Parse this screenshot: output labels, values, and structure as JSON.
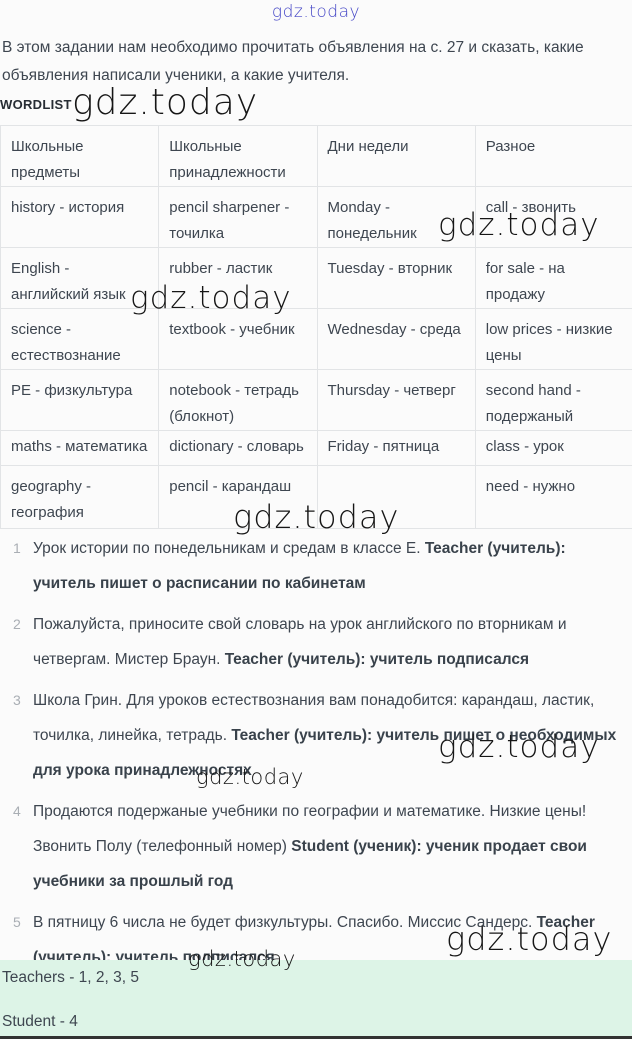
{
  "brand": {
    "watermark": "gdz.today"
  },
  "intro": {
    "text": "В этом задании нам необходимо прочитать объявления на с. 27 и сказать, какие объявления написали ученики, а какие учителя."
  },
  "wordlist": {
    "label": "WORDLIST"
  },
  "table": {
    "headers": [
      "Школьные предметы",
      "Школьные принадлежности",
      "Дни недели",
      "Разное"
    ],
    "rows": [
      [
        "history - история",
        "pencil sharpener - точилка",
        "Monday - понедельник",
        "call - звонить"
      ],
      [
        "English - английский язык",
        "rubber - ластик",
        "Tuesday - вторник",
        "for sale - на продажу"
      ],
      [
        "science - естествознание",
        "textbook - учебник",
        "Wednesday - среда",
        "low prices - низкие цены"
      ],
      [
        "PE - физкультура",
        "notebook - тетрадь (блокнот)",
        "Thursday - четверг",
        "second hand - подержаный"
      ],
      [
        "maths - математика",
        "dictionary - словарь",
        "Friday - пятница",
        "class - урок"
      ],
      [
        "geography - география",
        "pencil - карандаш",
        "",
        "need - нужно"
      ]
    ]
  },
  "answers": {
    "items": [
      {
        "num": "1",
        "text": "Урок истории по понедельникам и средам в классе E. ",
        "bold": "Teacher (учитель): учитель пишет о расписании по кабинетам"
      },
      {
        "num": "2",
        "text": "Пожалуйста, приносите свой словарь на урок английского по вторникам и четвергам. Мистер Браун. ",
        "bold": "Teacher (учитель): учитель подписался"
      },
      {
        "num": "3",
        "text": "Школа Грин. Для уроков естествознания вам понадобится: карандаш, ластик, точилка, линейка, тетрадь. ",
        "bold": "Teacher (учитель): учитель пишет о необходимых для урока принадлежностях"
      },
      {
        "num": "4",
        "text": "Продаются подержаные учебники по географии и математике. Низкие цены! Звонить Полу (телефонный номер) ",
        "bold": "Student (ученик): ученик продает свои учебники за прошлый год"
      },
      {
        "num": "5",
        "text": "В пятницу 6 числа не будет физкультуры. Спасибо. Миссис Сандерс. ",
        "bold": "Teacher (учитель): учитель подписался"
      }
    ]
  },
  "results": {
    "teachers": "Teachers - 1, 2, 3, 5",
    "student": "Student - 4"
  },
  "colors": {
    "text": "#3e4650",
    "muted_number": "#a9aeb4",
    "table_border": "#e2e4e6",
    "results_background": "#ddf4e7",
    "watermark_blue": "#4446c6",
    "watermark_black": "#161616"
  }
}
